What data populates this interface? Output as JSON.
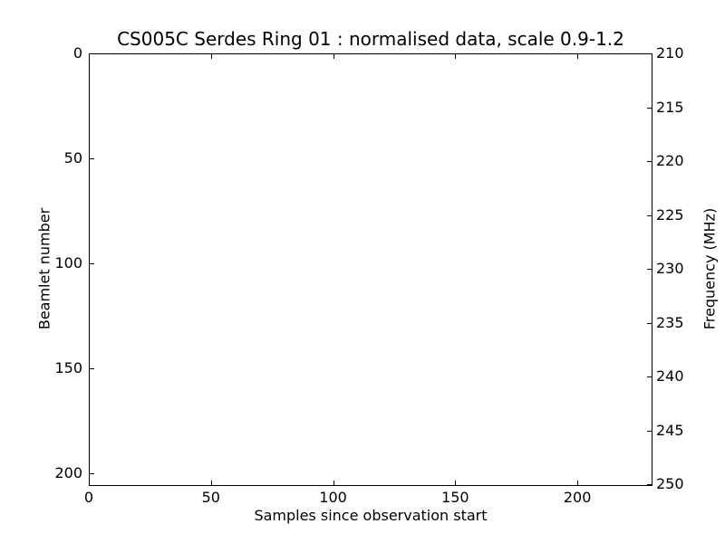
{
  "chart_data": {
    "type": "heatmap",
    "title": "CS005C Serdes Ring 01 : normalised data, scale 0.9-1.2",
    "xlabel": "Samples since observation start",
    "ylabel_left": "Beamlet number",
    "ylabel_right": "Frequency (MHz)",
    "x_ticks": [
      0,
      50,
      100,
      150,
      200
    ],
    "xlim": [
      0,
      230
    ],
    "y_ticks_left": [
      0,
      50,
      100,
      150,
      200
    ],
    "ylim_left": [
      0,
      205
    ],
    "y_axis_inverted": true,
    "y_ticks_right": [
      210,
      215,
      220,
      225,
      230,
      235,
      240,
      245,
      250
    ],
    "ylim_right": [
      210,
      250
    ],
    "color_scale": [
      0.9,
      1.2
    ],
    "plot_area_fill": "#ffffff",
    "axis_color": "#000000",
    "grid": false,
    "legend": null,
    "values": "uniform white — no visible data variation in plot area"
  }
}
